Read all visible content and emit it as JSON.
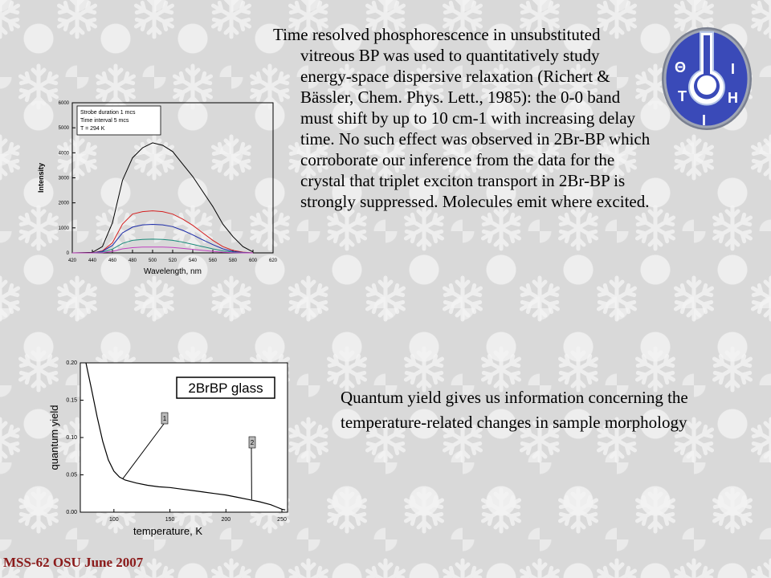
{
  "paragraph1": "Time resolved phosphorescence in unsubstituted vitreous BP was used to quantitatively study energy-space dispersive relaxation (Richert & Bässler, Chem. Phys. Lett., 1985): the 0-0 band must shift by up to 10 cm-1 with increasing delay time. No such effect  was observed in 2Br-BP which corroborate our inference from the data for the crystal that triplet exciton transport in 2Br-BP is strongly suppressed. Molecules emit where excited.",
  "paragraph2": "Quantum yield gives us information concerning the temperature-related changes in sample morphology",
  "footer": "MSS-62 OSU June 2007",
  "logo": {
    "letters": [
      "Θ",
      "Τ",
      "Ι",
      "Η",
      "Ι"
    ]
  },
  "chart_data": [
    {
      "type": "line",
      "title": "",
      "xlabel": "Wavelength, nm",
      "ylabel": "Intensity",
      "xlim": [
        420,
        620
      ],
      "ylim": [
        0,
        6000
      ],
      "xticks": [
        420,
        440,
        460,
        480,
        500,
        520,
        540,
        560,
        580,
        600,
        620
      ],
      "yticks": [
        0,
        1000,
        2000,
        3000,
        4000,
        5000,
        6000
      ],
      "legend_box": [
        "Strobe duration 1 mcs",
        "Time interval  5 mcs",
        "T = 294 K"
      ],
      "series": [
        {
          "color": "#000000",
          "x": [
            420,
            440,
            450,
            460,
            470,
            480,
            490,
            500,
            510,
            520,
            530,
            540,
            550,
            560,
            570,
            580,
            590,
            600
          ],
          "y": [
            0,
            20,
            250,
            1200,
            2900,
            3800,
            4200,
            4400,
            4300,
            4050,
            3550,
            3050,
            2450,
            1850,
            1150,
            650,
            250,
            40
          ]
        },
        {
          "color": "#d42020",
          "x": [
            420,
            440,
            450,
            460,
            470,
            480,
            490,
            500,
            510,
            520,
            530,
            540,
            550,
            560,
            570,
            580,
            590,
            600
          ],
          "y": [
            0,
            0,
            80,
            400,
            1150,
            1550,
            1650,
            1680,
            1650,
            1550,
            1350,
            1100,
            800,
            500,
            250,
            100,
            30,
            0
          ]
        },
        {
          "color": "#1a2aa8",
          "x": [
            420,
            440,
            450,
            460,
            470,
            480,
            490,
            500,
            510,
            520,
            530,
            540,
            550,
            560,
            570,
            580,
            590,
            600
          ],
          "y": [
            0,
            0,
            60,
            300,
            800,
            1030,
            1120,
            1140,
            1120,
            1050,
            900,
            720,
            520,
            330,
            160,
            60,
            15,
            0
          ]
        },
        {
          "color": "#1a8a7a",
          "x": [
            420,
            440,
            450,
            460,
            470,
            480,
            490,
            500,
            510,
            520,
            530,
            540,
            550,
            560,
            570,
            580,
            590,
            600
          ],
          "y": [
            0,
            0,
            30,
            150,
            380,
            500,
            540,
            550,
            540,
            500,
            430,
            340,
            250,
            160,
            80,
            30,
            5,
            0
          ]
        },
        {
          "color": "#c040c0",
          "x": [
            420,
            440,
            450,
            460,
            470,
            480,
            490,
            500,
            510,
            520,
            530,
            540,
            550,
            560,
            570,
            580,
            590,
            600
          ],
          "y": [
            0,
            0,
            10,
            60,
            160,
            210,
            230,
            235,
            230,
            215,
            180,
            140,
            100,
            60,
            30,
            10,
            0,
            0
          ]
        }
      ]
    },
    {
      "type": "line",
      "title": "2BrBP glass",
      "xlabel": "temperature,  K",
      "ylabel": "quantum  yield",
      "xlim": [
        70,
        255
      ],
      "ylim": [
        0,
        0.2
      ],
      "xticks": [
        100,
        150,
        200,
        250
      ],
      "yticks": [
        "0.00",
        "0.05",
        "0.10",
        "0.15",
        "0.20"
      ],
      "series": [
        {
          "color": "#000000",
          "x": [
            75,
            80,
            85,
            90,
            95,
            100,
            105,
            110,
            120,
            130,
            140,
            150,
            160,
            170,
            180,
            190,
            200,
            210,
            220,
            230,
            240,
            245,
            250,
            253
          ],
          "y": [
            0.2,
            0.165,
            0.128,
            0.095,
            0.07,
            0.055,
            0.047,
            0.043,
            0.039,
            0.036,
            0.034,
            0.033,
            0.031,
            0.029,
            0.027,
            0.025,
            0.023,
            0.02,
            0.017,
            0.014,
            0.01,
            0.007,
            0.004,
            0.003
          ]
        }
      ],
      "annotations": [
        {
          "label": "1",
          "x": 108,
          "y": 0.045
        },
        {
          "label": "2",
          "x": 223,
          "y": 0.017
        }
      ]
    }
  ]
}
